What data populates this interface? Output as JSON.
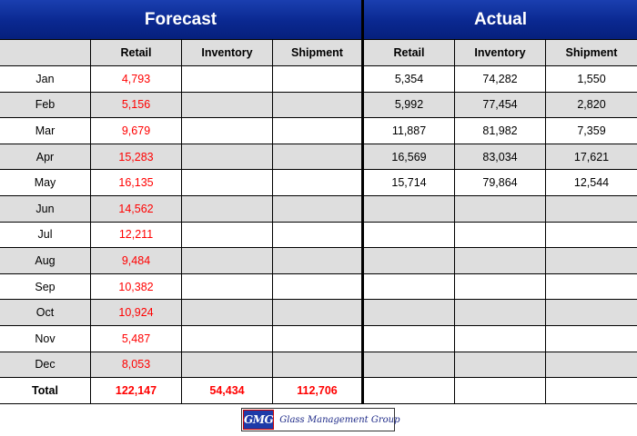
{
  "headers": {
    "forecast": "Forecast",
    "actual": "Actual"
  },
  "columns": [
    "",
    "Retail",
    "Inventory",
    "Shipment",
    "Retail",
    "Inventory",
    "Shipment"
  ],
  "rows": [
    {
      "month": "Jan",
      "f_retail": "4,793",
      "f_inv": "",
      "f_ship": "",
      "a_retail": "5,354",
      "a_inv": "74,282",
      "a_ship": "1,550"
    },
    {
      "month": "Feb",
      "f_retail": "5,156",
      "f_inv": "",
      "f_ship": "",
      "a_retail": "5,992",
      "a_inv": "77,454",
      "a_ship": "2,820"
    },
    {
      "month": "Mar",
      "f_retail": "9,679",
      "f_inv": "",
      "f_ship": "",
      "a_retail": "11,887",
      "a_inv": "81,982",
      "a_ship": "7,359"
    },
    {
      "month": "Apr",
      "f_retail": "15,283",
      "f_inv": "",
      "f_ship": "",
      "a_retail": "16,569",
      "a_inv": "83,034",
      "a_ship": "17,621"
    },
    {
      "month": "May",
      "f_retail": "16,135",
      "f_inv": "",
      "f_ship": "",
      "a_retail": "15,714",
      "a_inv": "79,864",
      "a_ship": "12,544"
    },
    {
      "month": "Jun",
      "f_retail": "14,562",
      "f_inv": "",
      "f_ship": "",
      "a_retail": "",
      "a_inv": "",
      "a_ship": ""
    },
    {
      "month": "Jul",
      "f_retail": "12,211",
      "f_inv": "",
      "f_ship": "",
      "a_retail": "",
      "a_inv": "",
      "a_ship": ""
    },
    {
      "month": "Aug",
      "f_retail": "9,484",
      "f_inv": "",
      "f_ship": "",
      "a_retail": "",
      "a_inv": "",
      "a_ship": ""
    },
    {
      "month": "Sep",
      "f_retail": "10,382",
      "f_inv": "",
      "f_ship": "",
      "a_retail": "",
      "a_inv": "",
      "a_ship": ""
    },
    {
      "month": "Oct",
      "f_retail": "10,924",
      "f_inv": "",
      "f_ship": "",
      "a_retail": "",
      "a_inv": "",
      "a_ship": ""
    },
    {
      "month": "Nov",
      "f_retail": "5,487",
      "f_inv": "",
      "f_ship": "",
      "a_retail": "",
      "a_inv": "",
      "a_ship": ""
    },
    {
      "month": "Dec",
      "f_retail": "8,053",
      "f_inv": "",
      "f_ship": "",
      "a_retail": "",
      "a_inv": "",
      "a_ship": ""
    }
  ],
  "total": {
    "label": "Total",
    "f_retail": "122,147",
    "f_inv": "54,434",
    "f_ship": "112,706",
    "a_retail": "",
    "a_inv": "",
    "a_ship": ""
  },
  "logo": {
    "mark": "GMG",
    "text": "Glass Management Group"
  },
  "colors": {
    "header_bg": "#0a2890",
    "forecast_values": "#ff0000",
    "stripe": "#dedede"
  }
}
